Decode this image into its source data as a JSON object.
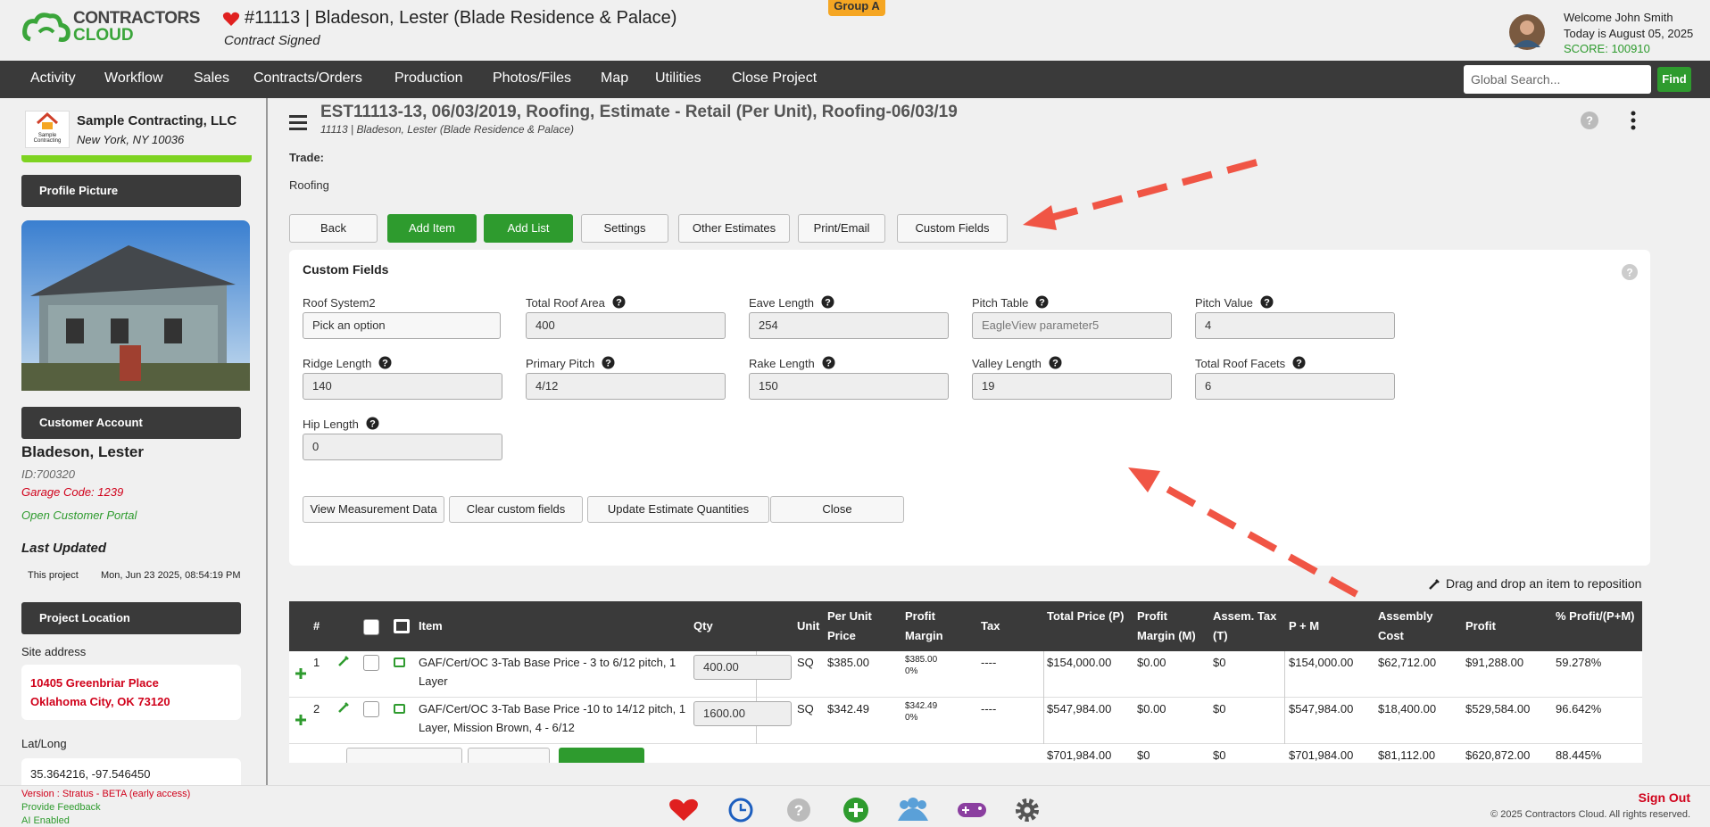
{
  "header": {
    "logo_line1": "CONTRACTORS",
    "logo_line2": "CLOUD",
    "project_title": "#11113 | Bladeson, Lester (Blade Residence & Palace)",
    "status": "Contract Signed",
    "group": "Group A",
    "welcome": "Welcome John Smith",
    "date": "Today is August 05, 2025",
    "score": "SCORE: 100910"
  },
  "nav": {
    "items": [
      "Activity",
      "Workflow",
      "Sales",
      "Contracts/Orders",
      "Production",
      "Photos/Files",
      "Map",
      "Utilities",
      "Close Project"
    ],
    "search_placeholder": "Global Search...",
    "find": "Find"
  },
  "sidebar": {
    "logo_text": "Sample Contracting",
    "company": "Sample Contracting, LLC",
    "company_location": "New York, NY 10036",
    "profile_picture": "Profile Picture",
    "customer_account": "Customer Account",
    "customer_name": "Bladeson, Lester",
    "customer_id": "ID:700320",
    "garage_code": "Garage Code: 1239",
    "portal": "Open Customer Portal",
    "last_updated": "Last Updated",
    "this_project": "This project",
    "updated_date": "Mon, Jun 23 2025, 08:54:19 PM",
    "project_location": "Project Location",
    "site_address_label": "Site address",
    "address_line1": "10405 Greenbriar Place",
    "address_line2": "Oklahoma City, OK 73120",
    "latlong_label": "Lat/Long",
    "latlong": "35.364216, -97.546450"
  },
  "main": {
    "estimate_title": "EST11113-13, 06/03/2019, Roofing, Estimate - Retail (Per Unit), Roofing-06/03/19",
    "estimate_subtitle": "11113 | Bladeson, Lester (Blade Residence & Palace)",
    "trade_label": "Trade:",
    "trade": "Roofing",
    "buttons": [
      "Back",
      "Add Item",
      "Add List",
      "Settings",
      "Other Estimates",
      "Print/Email",
      "Custom Fields"
    ]
  },
  "custom_fields": {
    "title": "Custom Fields",
    "fields": [
      {
        "label": "Roof System2",
        "value": "Pick an option"
      },
      {
        "label": "Total Roof Area",
        "value": "400"
      },
      {
        "label": "Eave Length",
        "value": "254"
      },
      {
        "label": "Pitch Table",
        "placeholder": "EagleView parameter5"
      },
      {
        "label": "Pitch Value",
        "value": "4"
      },
      {
        "label": "Ridge Length",
        "value": "140"
      },
      {
        "label": "Primary Pitch",
        "value": "4/12"
      },
      {
        "label": "Rake Length",
        "value": "150"
      },
      {
        "label": "Valley Length",
        "value": "19"
      },
      {
        "label": "Total Roof Facets",
        "value": "6"
      },
      {
        "label": "Hip Length",
        "value": "0"
      }
    ],
    "actions": [
      "View Measurement Data",
      "Clear custom fields",
      "Update Estimate Quantities",
      "Close"
    ]
  },
  "drag_hint": "Drag and drop an item to reposition",
  "table": {
    "columns": {
      "num": "#",
      "item": "Item",
      "qty": "Qty",
      "unit": "Unit",
      "per_unit": "Per Unit Price",
      "margin": "Profit Margin",
      "tax": "Tax",
      "total": "Total Price (P)",
      "margin_m": "Profit Margin (M)",
      "assem_tax": "Assem. Tax (T)",
      "pm": "P + M",
      "assembly_cost": "Assembly Cost",
      "profit": "Profit",
      "pct": "% Profit/(P+M)"
    },
    "rows": [
      {
        "num": "1",
        "item": "GAF/Cert/OC 3-Tab Base Price - 3 to 6/12 pitch, 1 Layer",
        "qty": "400.00",
        "unit": "SQ",
        "per_unit": "$385.00",
        "margin": "$385.00",
        "margin_pct": "0%",
        "tax": "----",
        "total": "$154,000.00",
        "margin_m": "$0.00",
        "assem_tax": "$0",
        "pm": "$154,000.00",
        "assembly_cost": "$62,712.00",
        "profit": "$91,288.00",
        "pct": "59.278%"
      },
      {
        "num": "2",
        "item": "GAF/Cert/OC 3-Tab Base Price -10 to 14/12 pitch, 1 Layer, Mission Brown, 4 - 6/12",
        "qty": "1600.00",
        "unit": "SQ",
        "per_unit": "$342.49",
        "margin": "$342.49",
        "margin_pct": "0%",
        "tax": "----",
        "total": "$547,984.00",
        "margin_m": "$0.00",
        "assem_tax": "$0",
        "pm": "$547,984.00",
        "assembly_cost": "$18,400.00",
        "profit": "$529,584.00",
        "pct": "96.642%"
      }
    ],
    "totals": {
      "total": "$701,984.00",
      "margin_m": "$0",
      "assem_tax": "$0",
      "pm": "$701,984.00",
      "assembly_cost": "$81,112.00",
      "profit": "$620,872.00",
      "pct": "88.445%"
    }
  },
  "footer": {
    "version": "Version : Stratus - BETA (early access)",
    "feedback": "Provide Feedback",
    "ai": "AI Enabled",
    "sign_out": "Sign Out",
    "copyright": "© 2025 Contractors Cloud. All rights reserved."
  }
}
